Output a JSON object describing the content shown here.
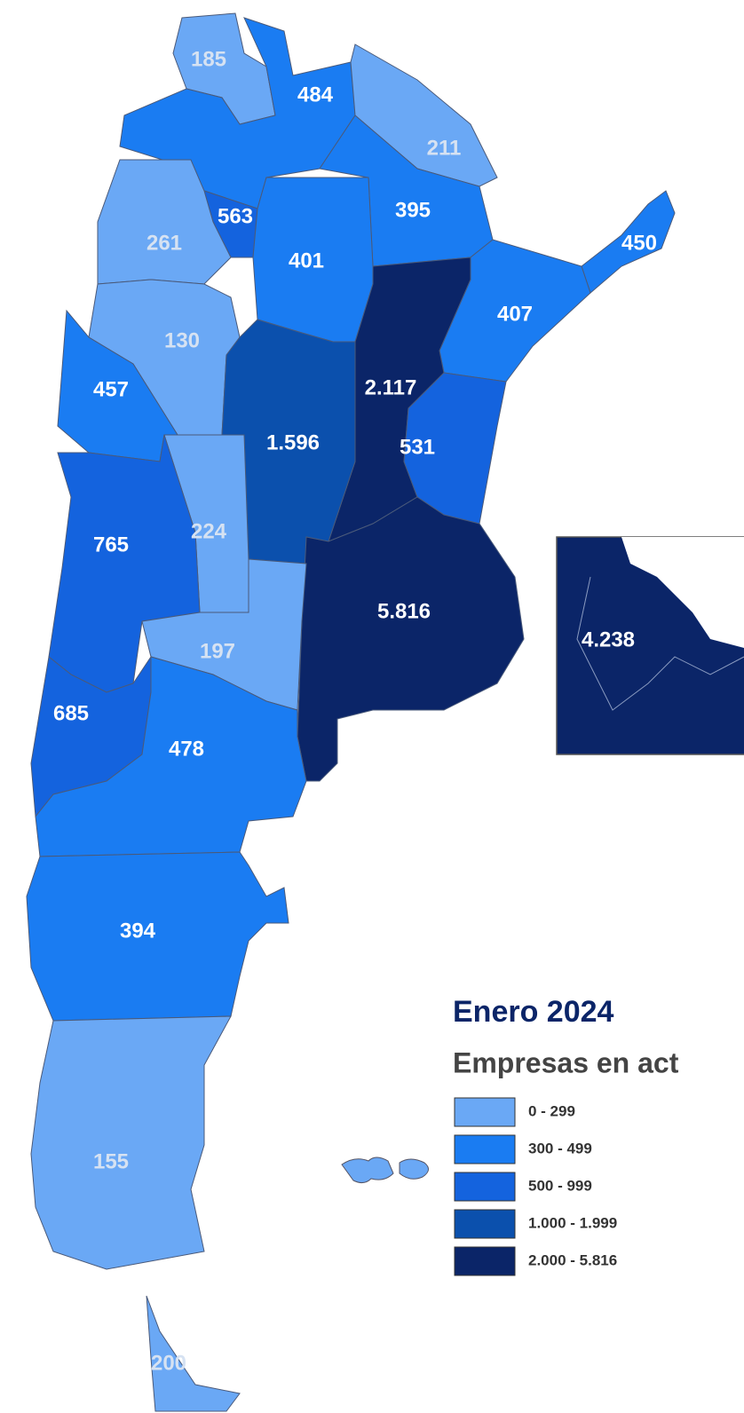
{
  "title": "Enero 2024",
  "subtitle": "Empresas en act",
  "regions": [
    {
      "label": "185",
      "color": "#6aa8f5"
    },
    {
      "label": "484",
      "color": "#1a7cf2"
    },
    {
      "label": "211",
      "color": "#6aa8f5"
    },
    {
      "label": "395",
      "color": "#1a7cf2"
    },
    {
      "label": "563",
      "color": "#1463de"
    },
    {
      "label": "261",
      "color": "#6aa8f5"
    },
    {
      "label": "401",
      "color": "#1a7cf2"
    },
    {
      "label": "450",
      "color": "#1a7cf2"
    },
    {
      "label": "407",
      "color": "#1a7cf2"
    },
    {
      "label": "130",
      "color": "#6aa8f5"
    },
    {
      "label": "2.117",
      "color": "#0b2568"
    },
    {
      "label": "457",
      "color": "#1a7cf2"
    },
    {
      "label": "1.596",
      "color": "#0b50ad"
    },
    {
      "label": "531",
      "color": "#1463de"
    },
    {
      "label": "224",
      "color": "#6aa8f5"
    },
    {
      "label": "765",
      "color": "#1463de"
    },
    {
      "label": "5.816",
      "color": "#0b2568"
    },
    {
      "label": "197",
      "color": "#6aa8f5"
    },
    {
      "label": "685",
      "color": "#1463de"
    },
    {
      "label": "478",
      "color": "#1a7cf2"
    },
    {
      "label": "394",
      "color": "#1a7cf2"
    },
    {
      "label": "155",
      "color": "#6aa8f5"
    },
    {
      "label": "200",
      "color": "#6aa8f5"
    }
  ],
  "inset": {
    "label": "4.238",
    "color": "#0b2568"
  },
  "legend": [
    {
      "label": "0 - 299",
      "color": "#6aa8f5"
    },
    {
      "label": "300 - 499",
      "color": "#1a7cf2"
    },
    {
      "label": "500 - 999",
      "color": "#1463de"
    },
    {
      "label": "1.000 - 1.999",
      "color": "#0b50ad"
    },
    {
      "label": "2.000 - 5.816",
      "color": "#0b2568"
    }
  ]
}
